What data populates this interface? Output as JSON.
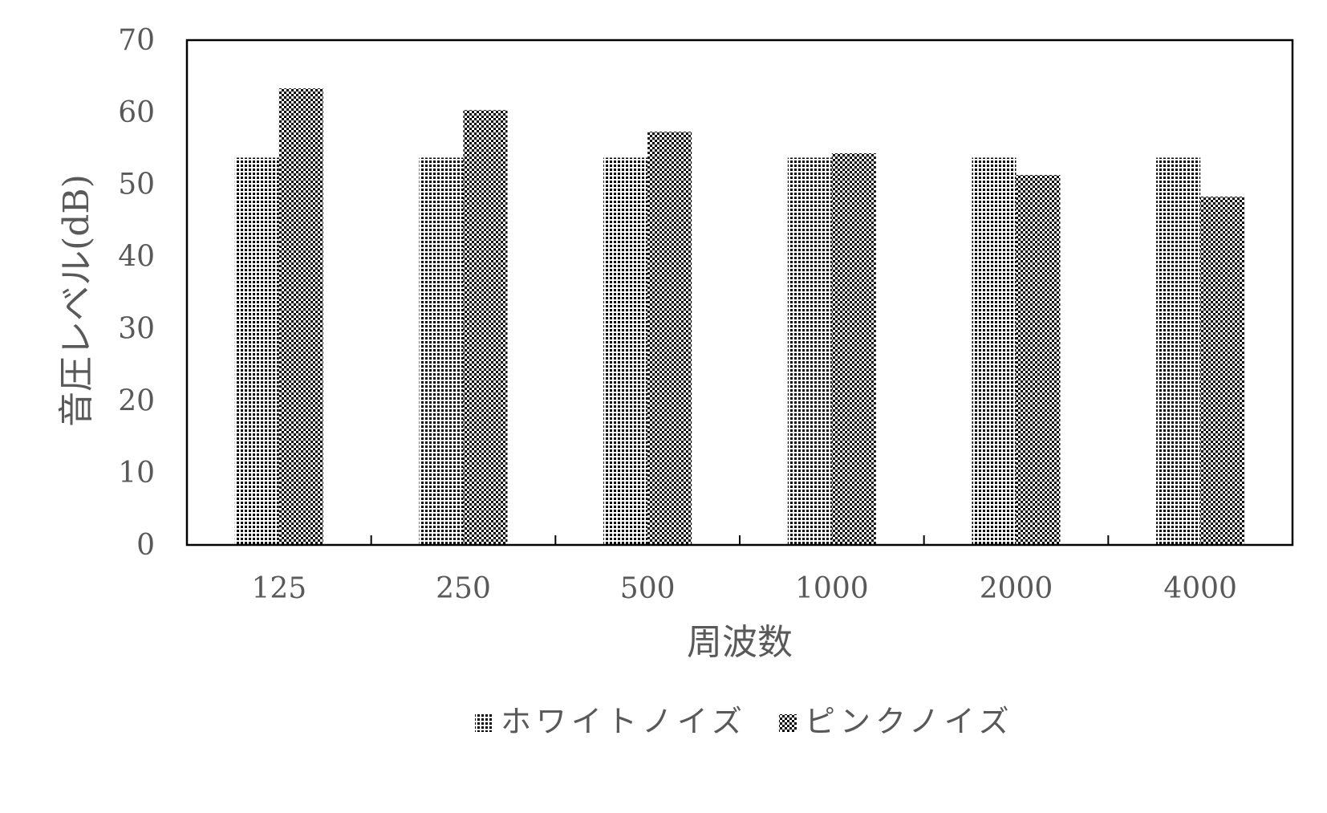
{
  "chart_data": {
    "type": "bar",
    "title": "",
    "xlabel": "周波数",
    "ylabel": "音圧レベル(dB)",
    "categories": [
      "125",
      "250",
      "500",
      "1000",
      "2000",
      "4000"
    ],
    "series": [
      {
        "name": "ホワイトノイズ",
        "values": [
          53.7,
          53.7,
          53.7,
          53.7,
          53.7,
          53.7
        ],
        "pattern": "dots"
      },
      {
        "name": "ピンクノイズ",
        "values": [
          63.3,
          60.3,
          57.3,
          54.3,
          51.3,
          48.3
        ],
        "pattern": "checker"
      }
    ],
    "ylim": [
      0,
      70
    ],
    "yticks": [
      0,
      10,
      20,
      30,
      40,
      50,
      60,
      70
    ],
    "grid": false,
    "legend_position": "bottom",
    "colors": {
      "axis": "#000000",
      "text": "#595959",
      "bar_dark": "#000000",
      "background": "#ffffff"
    }
  }
}
